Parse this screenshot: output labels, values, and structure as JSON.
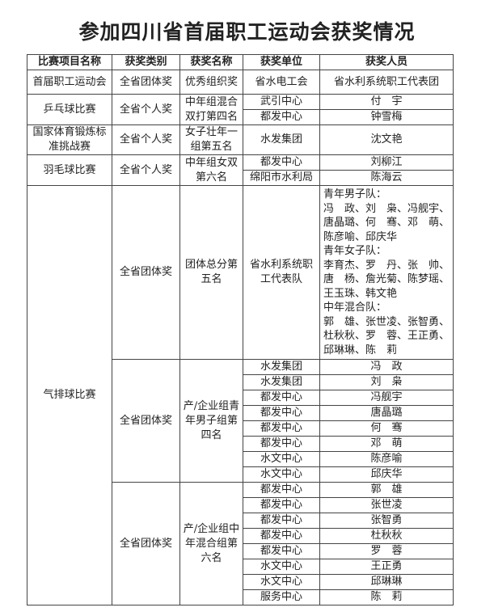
{
  "title": "参加四川省首届职工运动会获奖情况",
  "headers": [
    "比赛项目名称",
    "获奖类别",
    "获奖名称",
    "获奖单位",
    "获奖人员"
  ],
  "events": [
    {
      "name": "首届职工运动会",
      "awards": [
        {
          "category": "全省团体奖",
          "award_name": "优秀组织奖",
          "entries": [
            {
              "unit": "省水电工会",
              "person": "省水利系统职工代表团"
            }
          ]
        }
      ]
    },
    {
      "name": "乒乓球比赛",
      "awards": [
        {
          "category": "全省个人奖",
          "award_name": "中年组混合双打第四名",
          "entries": [
            {
              "unit": "武引中心",
              "person": "付　宇"
            },
            {
              "unit": "都发中心",
              "person": "钟雪梅"
            }
          ]
        }
      ]
    },
    {
      "name": "国家体育锻炼标准挑战赛",
      "awards": [
        {
          "category": "全省个人奖",
          "award_name": "女子壮年一组第五名",
          "entries": [
            {
              "unit": "水发集团",
              "person": "沈文艳"
            }
          ]
        }
      ]
    },
    {
      "name": "羽毛球比赛",
      "awards": [
        {
          "category": "全省个人奖",
          "award_name": "中年组女双第六名",
          "entries": [
            {
              "unit": "都发中心",
              "person": "刘柳江"
            },
            {
              "unit": "绵阳市水利局",
              "person": "陈海云"
            }
          ]
        }
      ]
    },
    {
      "name": "气排球比赛",
      "awards": [
        {
          "category": "全省团体奖",
          "award_name": "团体总分第五名",
          "entries": [
            {
              "unit": "省水利系统职工代表队",
              "person_lines": [
                "青年男子队：",
                "冯　政、刘　枭、冯舰宇、",
                "唐晶璐、何　骞、邓　萌、",
                "陈彦喻、邱庆华",
                "青年女子队：",
                "李育杰、罗　丹、张　帅、",
                "唐　杨、詹光菊、陈梦瑶、",
                "王玉珠、韩文艳",
                "中年混合队：",
                "郭　雄、张世凌、张智勇、",
                "杜秋秋、罗　蓉、王正勇、",
                "邱琳琳、陈　莉"
              ]
            }
          ]
        },
        {
          "category": "全省团体奖",
          "award_name": "产/企业组青年男子组第四名",
          "entries": [
            {
              "unit": "水发集团",
              "person": "冯　政"
            },
            {
              "unit": "水发集团",
              "person": "刘　枭"
            },
            {
              "unit": "都发中心",
              "person": "冯舰宇"
            },
            {
              "unit": "都发中心",
              "person": "唐晶璐"
            },
            {
              "unit": "都发中心",
              "person": "何　骞"
            },
            {
              "unit": "都发中心",
              "person": "邓　萌"
            },
            {
              "unit": "水文中心",
              "person": "陈彦喻"
            },
            {
              "unit": "水文中心",
              "person": "邱庆华"
            }
          ]
        },
        {
          "category": "全省团体奖",
          "award_name": "产/企业组中年混合组第六名",
          "entries": [
            {
              "unit": "都发中心",
              "person": "郭　雄"
            },
            {
              "unit": "都发中心",
              "person": "张世凌"
            },
            {
              "unit": "都发中心",
              "person": "张智勇"
            },
            {
              "unit": "都发中心",
              "person": "杜秋秋"
            },
            {
              "unit": "都发中心",
              "person": "罗　蓉"
            },
            {
              "unit": "水文中心",
              "person": "王正勇"
            },
            {
              "unit": "水文中心",
              "person": "邱琳琳"
            },
            {
              "unit": "服务中心",
              "person": "陈　莉"
            }
          ]
        }
      ]
    }
  ]
}
